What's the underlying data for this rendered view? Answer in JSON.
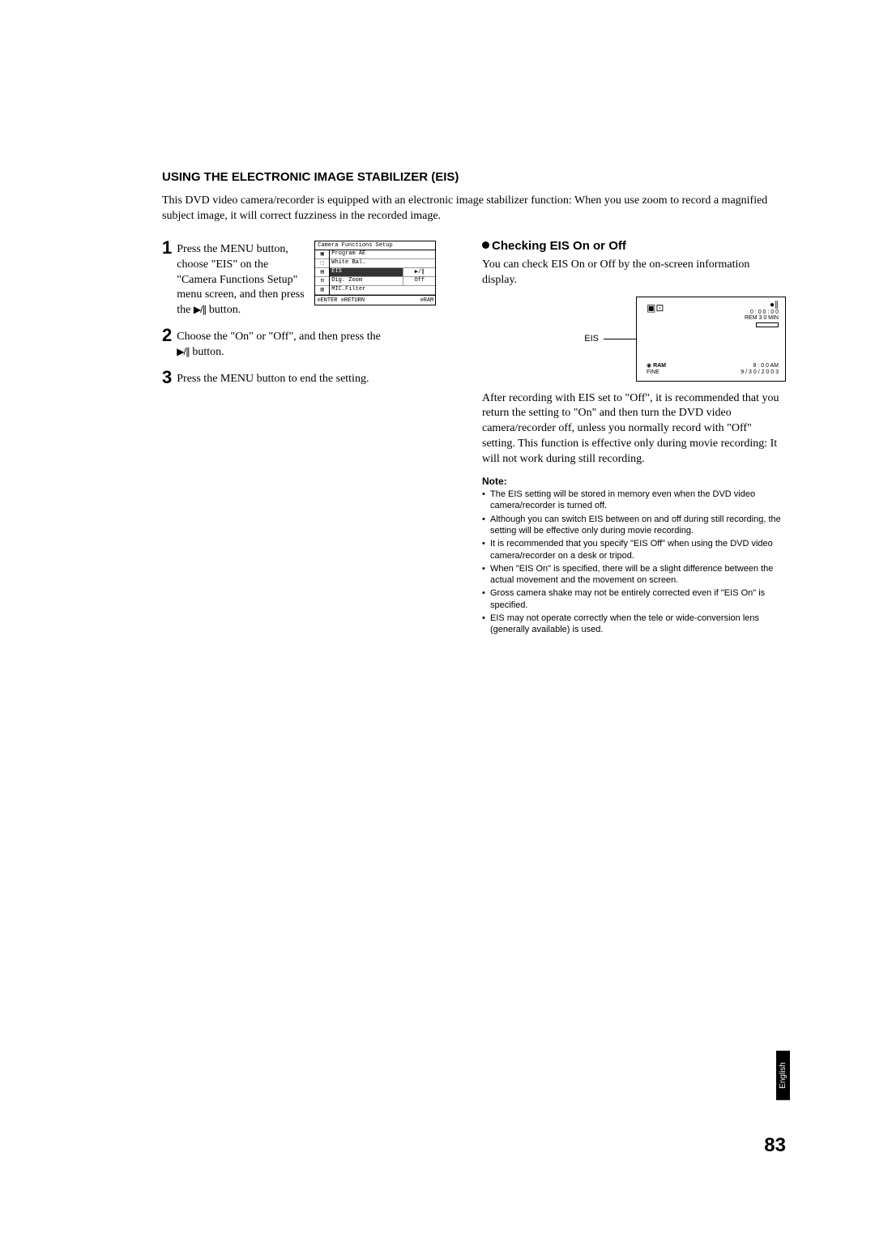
{
  "heading": "USING THE ELECTRONIC IMAGE STABILIZER (EIS)",
  "intro": "This DVD video camera/recorder is equipped with an electronic image stabilizer function: When you use zoom to record a magnified subject image, it will correct fuzziness in the recorded image.",
  "steps": {
    "s1_num": "1",
    "s1_text_a": "Press the MENU button, choose \"EIS\" on the \"Camera Functions Setup\" menu screen, and then press the ",
    "s1_text_b": " button.",
    "s2_num": "2",
    "s2_text_a": "Choose the \"On\" or \"Off\", and then press the ",
    "s2_text_b": " button.",
    "s3_num": "3",
    "s3_text": "Press the MENU button to end the setting."
  },
  "menu": {
    "title": "Camera Functions Setup",
    "rows": [
      {
        "label": "Program AE",
        "val": ""
      },
      {
        "label": "White Bal.",
        "val": ""
      },
      {
        "label": "EIS",
        "val": "▶/∥"
      },
      {
        "label": "Dig. Zoom",
        "val": "Off"
      },
      {
        "label": "MIC.Filter",
        "val": ""
      }
    ],
    "footer_left": "⊙ENTER ⊙RETURN",
    "footer_right": "⊘RAM"
  },
  "sub_heading": "Checking EIS On or Off",
  "right_p1": "You can check EIS On or Off by the on-screen information display.",
  "diagram": {
    "eis_label": "EIS",
    "time1": "0 : 0 0 : 0 0",
    "rem": "REM 3 0 MIN",
    "ram": "RAM",
    "fine": "FINE",
    "am": "8 : 0 0 AM",
    "date": "9 / 3 0 / 2 0 0 3"
  },
  "right_p2": "After recording with EIS set to \"Off\", it is recommended that you return the setting to \"On\" and then turn the DVD video camera/recorder off, unless you normally record with \"Off\" setting. This function is effective only during movie recording: It will not work during still recording.",
  "note_heading": "Note:",
  "notes": [
    "The EIS setting will be stored in memory even when the DVD video camera/recorder is turned off.",
    "Although you can switch EIS between on and off during still recording, the setting will be effective only during movie recording.",
    "It is recommended that you specify \"EIS Off\" when using the DVD video camera/recorder on a desk or tripod.",
    "When \"EIS On\" is specified, there will be a slight difference between the actual movement and the movement on screen.",
    "Gross camera shake may not be entirely corrected even if \"EIS On\" is specified.",
    "EIS may not operate correctly when the tele or wide-conversion lens (generally available) is used."
  ],
  "page_num": "83",
  "lang": "English"
}
